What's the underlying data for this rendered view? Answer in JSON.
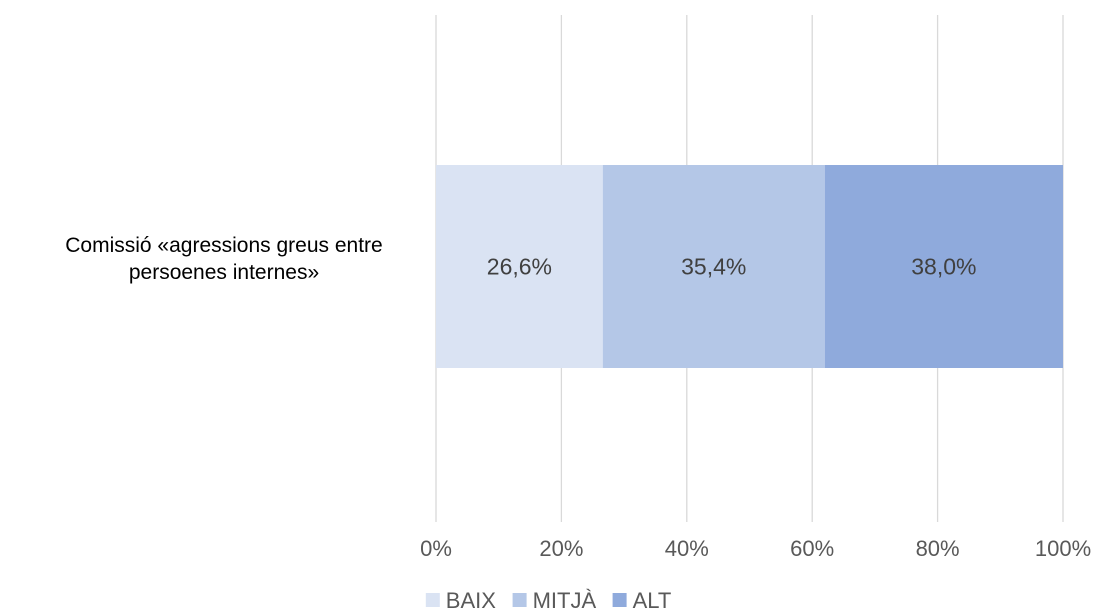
{
  "chart_data": {
    "type": "bar",
    "orientation": "horizontal",
    "stacked": true,
    "percent_stacked": true,
    "categories": [
      "Comissió «agressions greus entre persoenes internes»"
    ],
    "category_label_lines": [
      [
        "Comissió «agressions greus entre",
        "persoenes internes»"
      ]
    ],
    "series": [
      {
        "name": "BAIX",
        "values": [
          26.6
        ],
        "label": "26,6%",
        "color": "#dae3f3"
      },
      {
        "name": "MITJÀ",
        "values": [
          35.4
        ],
        "label": "35,4%",
        "color": "#b4c7e7"
      },
      {
        "name": "ALT",
        "values": [
          38.0
        ],
        "label": "38,0%",
        "color": "#8faadc"
      }
    ],
    "xlim": [
      0,
      100
    ],
    "x_ticks": [
      0,
      20,
      40,
      60,
      80,
      100
    ],
    "x_tick_labels": [
      "0%",
      "20%",
      "40%",
      "60%",
      "80%",
      "100%"
    ],
    "grid": true,
    "legend_position": "bottom",
    "title": "",
    "xlabel": "",
    "ylabel": ""
  }
}
